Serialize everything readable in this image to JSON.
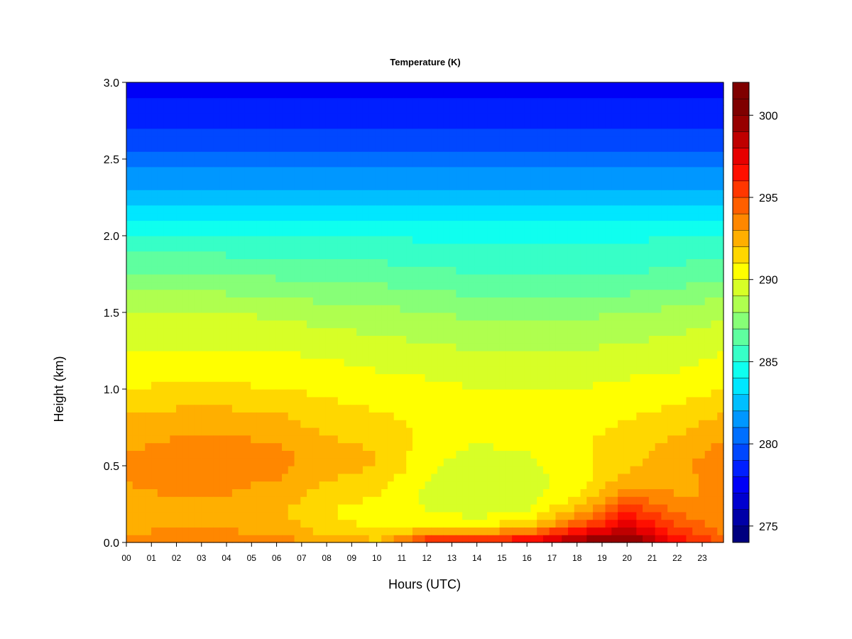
{
  "chart_data": {
    "type": "heatmap",
    "title": "Temperature (K)",
    "xlabel": "Hours (UTC)",
    "ylabel": "Height (km)",
    "xlim": [
      0,
      23.85
    ],
    "ylim": [
      0.0,
      3.0
    ],
    "x_ticks": [
      "00",
      "01",
      "02",
      "03",
      "04",
      "05",
      "06",
      "07",
      "08",
      "09",
      "10",
      "11",
      "12",
      "13",
      "14",
      "15",
      "16",
      "17",
      "18",
      "19",
      "20",
      "21",
      "22",
      "23"
    ],
    "y_ticks": [
      "0.0",
      "0.5",
      "1.0",
      "1.5",
      "2.0",
      "2.5",
      "3.0"
    ],
    "colorbar": {
      "range": [
        274,
        302
      ],
      "ticks": [
        "275",
        "280",
        "285",
        "290",
        "295",
        "300"
      ],
      "colors": [
        "#00007f",
        "#0000a7",
        "#0000cf",
        "#0000f7",
        "#001fff",
        "#0047ff",
        "#006fff",
        "#0097ff",
        "#00bfff",
        "#00e7ff",
        "#0fffef",
        "#37ffc7",
        "#5fff9f",
        "#87ff77",
        "#afff4f",
        "#d7ff27",
        "#ffff00",
        "#ffd700",
        "#ffaf00",
        "#ff8700",
        "#ff5f00",
        "#ff3700",
        "#ff0f00",
        "#e70000",
        "#bf0000",
        "#970000",
        "#7f0000",
        "#7f0000"
      ]
    },
    "profile_grid": {
      "heights_km": [
        0.0,
        0.05,
        0.1,
        0.2,
        0.3,
        0.4,
        0.5,
        0.6,
        0.7,
        0.8,
        1.0,
        1.25,
        1.5,
        1.75,
        2.0,
        2.25,
        2.5,
        2.75,
        3.0
      ],
      "hours": [
        0,
        2,
        4,
        6,
        8,
        10,
        12,
        14,
        16,
        18,
        20,
        22,
        23.85
      ],
      "values_K": [
        [
          293.5,
          293.0,
          292.8,
          292.5,
          292.8,
          293.0,
          293.3,
          293.0,
          292.5,
          292.2,
          291.0,
          290.0,
          289.0,
          287.0,
          285.0,
          282.5,
          280.5,
          278.5,
          277.5
        ],
        [
          293.8,
          293.2,
          293.0,
          292.8,
          293.0,
          293.3,
          293.5,
          293.3,
          293.0,
          292.5,
          291.2,
          290.0,
          289.0,
          287.0,
          285.0,
          282.5,
          280.5,
          278.5,
          277.5
        ],
        [
          293.8,
          293.2,
          293.0,
          292.8,
          293.0,
          293.2,
          293.5,
          293.3,
          293.0,
          292.5,
          291.2,
          290.0,
          289.0,
          287.0,
          285.0,
          282.5,
          280.5,
          278.5,
          277.5
        ],
        [
          293.5,
          293.0,
          292.5,
          292.3,
          292.5,
          293.0,
          293.3,
          293.2,
          292.8,
          292.3,
          291.0,
          290.0,
          288.8,
          286.8,
          285.0,
          282.5,
          280.5,
          278.5,
          277.5
        ],
        [
          292.8,
          292.0,
          291.5,
          291.0,
          291.5,
          292.0,
          292.5,
          292.5,
          292.0,
          291.5,
          290.8,
          289.8,
          288.5,
          286.5,
          285.0,
          282.5,
          280.5,
          278.5,
          277.5
        ],
        [
          292.3,
          291.5,
          290.8,
          290.5,
          291.0,
          291.5,
          292.0,
          292.0,
          291.5,
          291.2,
          290.5,
          289.5,
          288.3,
          286.5,
          285.0,
          282.5,
          280.5,
          278.5,
          277.5
        ],
        [
          296.5,
          293.5,
          291.0,
          290.0,
          289.8,
          290.0,
          290.3,
          290.5,
          290.8,
          290.8,
          290.3,
          289.3,
          288.0,
          286.3,
          284.8,
          282.5,
          280.5,
          278.5,
          277.5
        ],
        [
          297.0,
          294.0,
          291.0,
          289.5,
          289.0,
          289.0,
          289.3,
          289.8,
          290.3,
          290.5,
          290.0,
          289.0,
          287.8,
          286.0,
          284.8,
          282.5,
          280.5,
          278.5,
          277.5
        ],
        [
          297.5,
          295.0,
          292.0,
          290.0,
          289.5,
          289.5,
          289.8,
          290.0,
          290.5,
          290.5,
          290.0,
          289.0,
          287.8,
          286.0,
          284.8,
          282.5,
          280.5,
          278.5,
          277.5
        ],
        [
          299.5,
          298.0,
          295.0,
          292.5,
          291.0,
          290.5,
          290.5,
          290.8,
          290.8,
          290.5,
          290.0,
          289.0,
          287.8,
          286.0,
          284.8,
          282.5,
          280.5,
          278.5,
          277.5
        ],
        [
          300.5,
          299.5,
          298.0,
          296.0,
          294.0,
          292.5,
          291.8,
          291.5,
          291.3,
          291.0,
          290.3,
          289.3,
          288.0,
          286.0,
          284.8,
          282.5,
          280.5,
          278.5,
          277.5
        ],
        [
          297.0,
          296.0,
          295.0,
          294.0,
          293.0,
          292.8,
          292.8,
          292.5,
          292.0,
          291.5,
          290.5,
          289.5,
          288.3,
          286.3,
          285.0,
          282.5,
          280.5,
          278.5,
          277.5
        ],
        [
          294.5,
          294.0,
          293.5,
          293.0,
          293.0,
          293.2,
          293.5,
          293.3,
          292.8,
          292.3,
          291.0,
          290.0,
          288.8,
          286.8,
          285.0,
          282.5,
          280.5,
          278.5,
          277.5
        ]
      ]
    }
  }
}
